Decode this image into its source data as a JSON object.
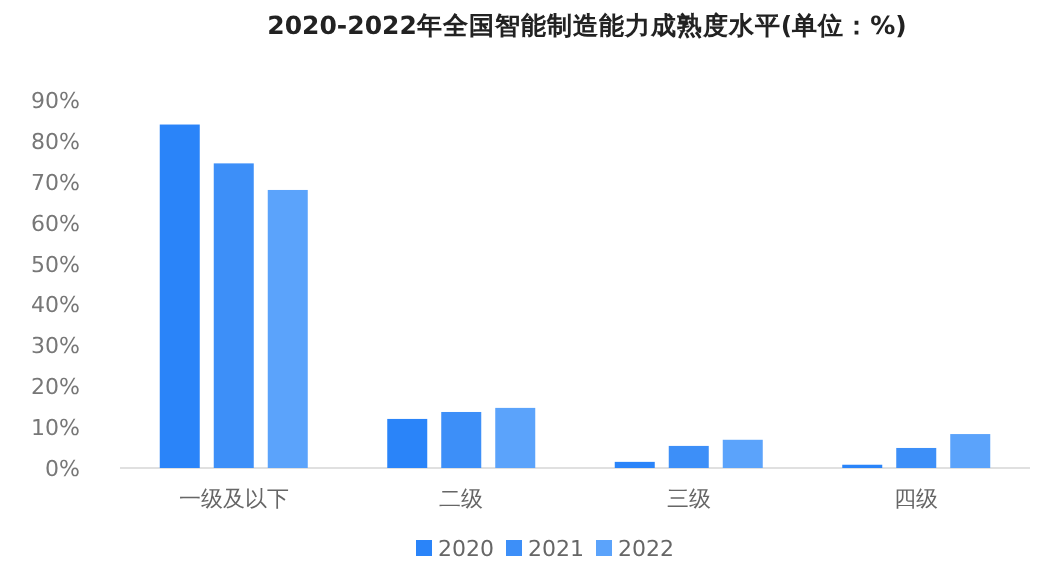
{
  "chart_data": {
    "type": "bar",
    "title": "2020-2022年全国智能制造能力成熟度水平(单位：%)",
    "categories": [
      "一级及以下",
      "二级",
      "三级",
      "四级"
    ],
    "series": [
      {
        "name": "2020",
        "color": "#2a84f9",
        "values": [
          84,
          12,
          1.5,
          0.8
        ]
      },
      {
        "name": "2021",
        "color": "#3d8ff8",
        "values": [
          74.5,
          13.7,
          5.4,
          4.9
        ]
      },
      {
        "name": "2022",
        "color": "#5ba3fb",
        "values": [
          68,
          14.7,
          6.9,
          8.3
        ]
      }
    ],
    "ylim": [
      0,
      90
    ],
    "yticks": [
      {
        "value": 0,
        "label": "0%"
      },
      {
        "value": 10,
        "label": "10%"
      },
      {
        "value": 20,
        "label": "20%"
      },
      {
        "value": 30,
        "label": "30%"
      },
      {
        "value": 40,
        "label": "40%"
      },
      {
        "value": 50,
        "label": "50%"
      },
      {
        "value": 60,
        "label": "60%"
      },
      {
        "value": 70,
        "label": "70%"
      },
      {
        "value": 80,
        "label": "80%"
      },
      {
        "value": 90,
        "label": "90%"
      }
    ],
    "grid": false,
    "legend": "bottom"
  }
}
